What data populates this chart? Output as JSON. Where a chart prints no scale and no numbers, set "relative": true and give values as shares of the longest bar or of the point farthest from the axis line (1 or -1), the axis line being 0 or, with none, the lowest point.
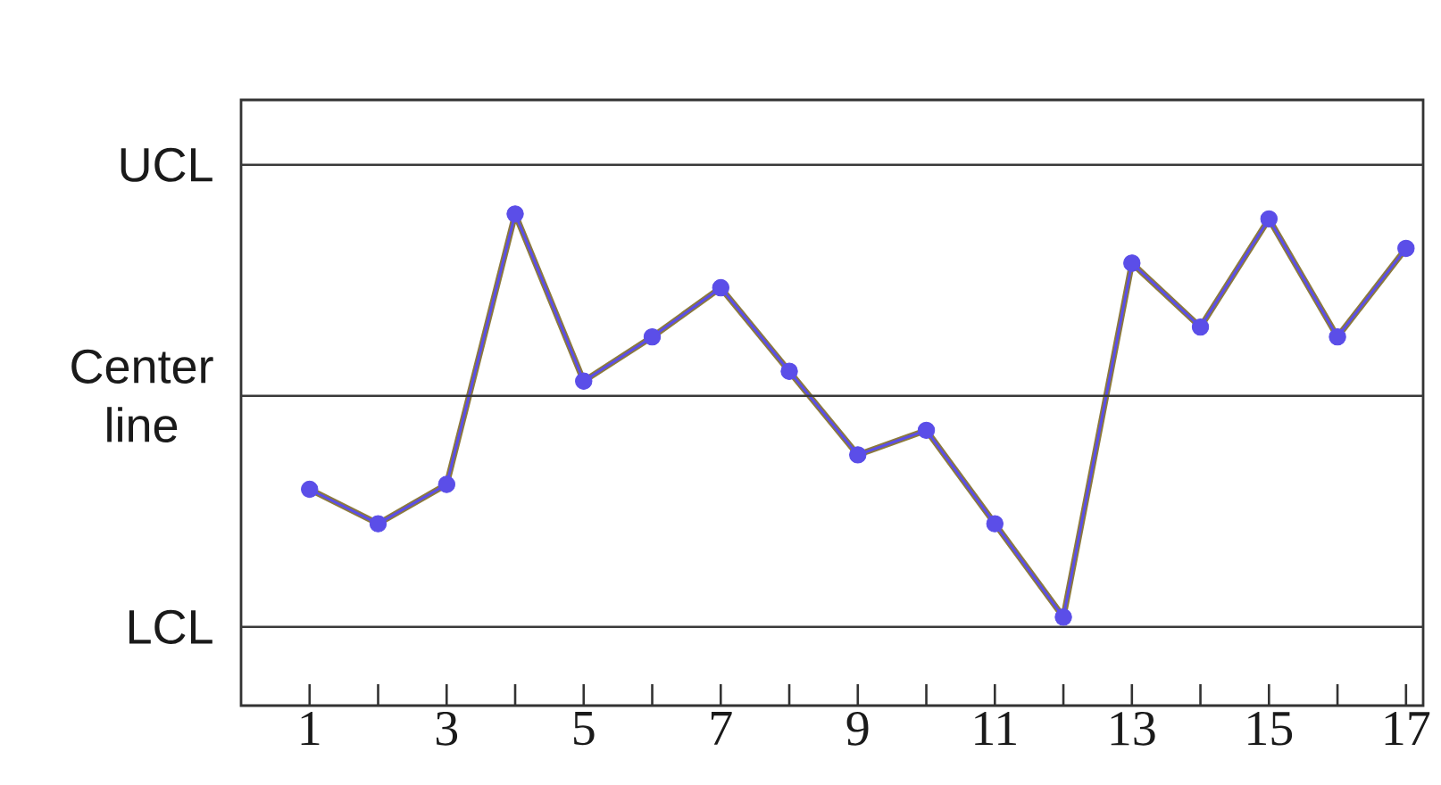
{
  "chart_data": {
    "type": "line",
    "relative": true,
    "marker": "circle",
    "line_style": "solid",
    "x": [
      1,
      2,
      3,
      4,
      5,
      6,
      7,
      8,
      9,
      10,
      11,
      12,
      13,
      14,
      15,
      16,
      17
    ],
    "series": [
      {
        "color": "#5b4ee8",
        "values": [
          0.44,
          0.37,
          0.45,
          1,
          0.66,
          0.75,
          0.85,
          0.68,
          0.51,
          0.56,
          0.37,
          0.18,
          0.9,
          0.77,
          0.99,
          0.75,
          0.93
        ]
      }
    ],
    "xlim": [
      0,
      17.25
    ],
    "xticks": [
      1,
      {
        "value": 2,
        "label": null
      },
      3,
      {
        "value": 4,
        "label": null
      },
      5,
      {
        "value": 6,
        "label": null
      },
      7,
      {
        "value": 8,
        "label": null
      },
      9,
      {
        "value": 10,
        "label": null
      },
      11,
      {
        "value": 12,
        "label": null
      },
      13,
      {
        "value": 14,
        "label": null
      },
      15,
      {
        "value": 16,
        "label": null
      },
      17
    ],
    "ref_lines": [
      {
        "axis": "y",
        "value": 1.1,
        "label": "UCL",
        "color": "#3a3a3a"
      },
      {
        "axis": "y",
        "value": 0.63,
        "label": "Center line",
        "color": "#3a3a3a"
      },
      {
        "axis": "y",
        "value": 0.16,
        "label": "LCL",
        "color": "#3a3a3a"
      }
    ]
  }
}
